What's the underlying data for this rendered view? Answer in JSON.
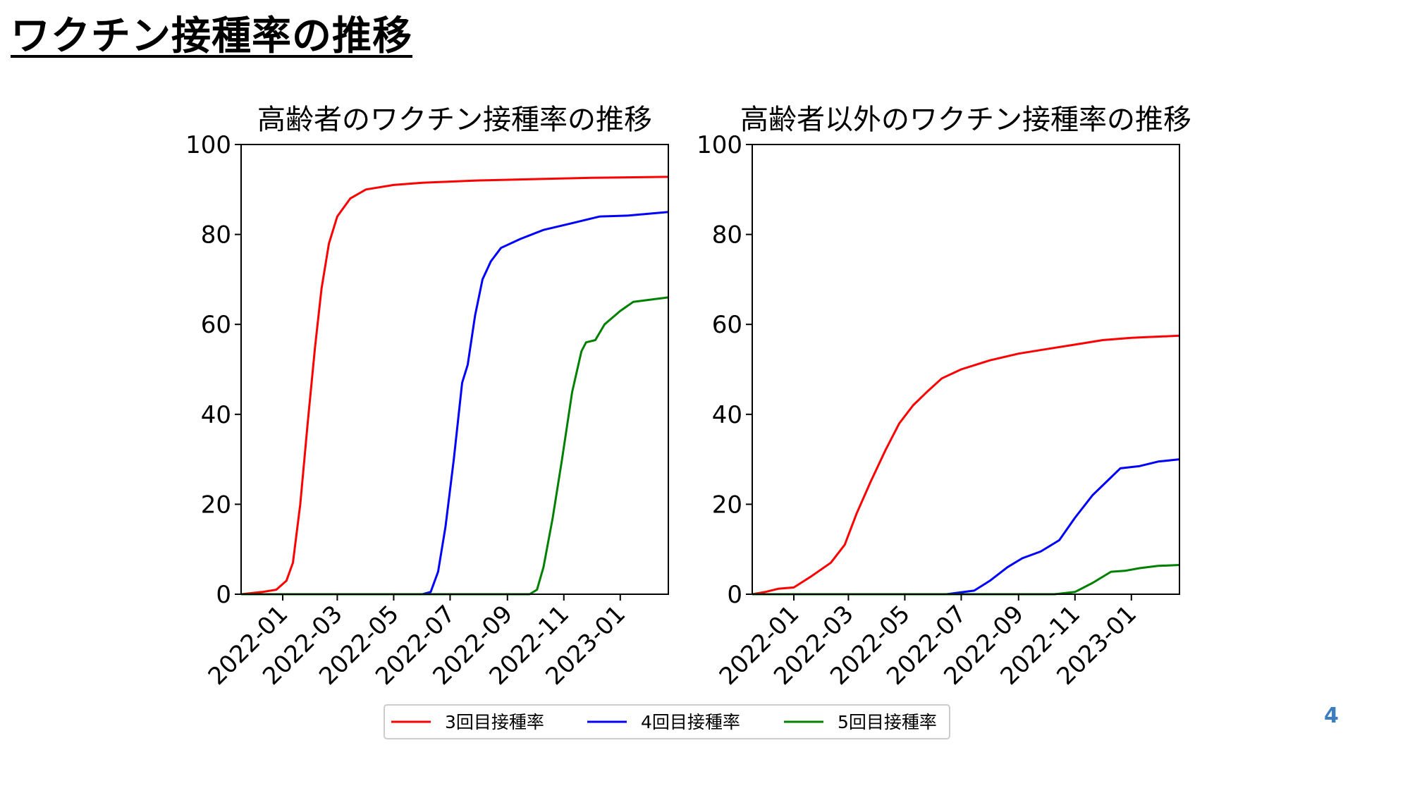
{
  "slide": {
    "title": "ワクチン接種率の推移",
    "page_number": "4"
  },
  "colors": {
    "dose3": "#ff0000",
    "dose4": "#0000ff",
    "dose5": "#008000",
    "page_number": "#3a7ec0"
  },
  "legend": {
    "placement": "bottom-center",
    "entries": [
      {
        "label": "3回目接種率",
        "color": "#ff0000"
      },
      {
        "label": "4回目接種率",
        "color": "#0000ff"
      },
      {
        "label": "5回目接種率",
        "color": "#008000"
      }
    ]
  },
  "chart_data": [
    {
      "type": "line",
      "title": "高齢者のワクチン接種率の推移",
      "xlabel": "",
      "ylabel": "",
      "xlim": [
        "2021-11-17",
        "2023-02-22"
      ],
      "ylim": [
        0,
        100
      ],
      "xticks": [
        "2022-01",
        "2022-03",
        "2022-05",
        "2022-07",
        "2022-09",
        "2022-11",
        "2023-01"
      ],
      "yticks": [
        0,
        20,
        40,
        60,
        80,
        100
      ],
      "grid": false,
      "series": [
        {
          "name": "3回目接種率",
          "color": "#ff0000",
          "points": [
            [
              "2021-11-17",
              0
            ],
            [
              "2021-12-10",
              0.5
            ],
            [
              "2021-12-25",
              1
            ],
            [
              "2022-01-05",
              3
            ],
            [
              "2022-01-12",
              7
            ],
            [
              "2022-01-20",
              20
            ],
            [
              "2022-01-28",
              38
            ],
            [
              "2022-02-05",
              55
            ],
            [
              "2022-02-12",
              68
            ],
            [
              "2022-02-20",
              78
            ],
            [
              "2022-03-01",
              84
            ],
            [
              "2022-03-15",
              88
            ],
            [
              "2022-04-01",
              90
            ],
            [
              "2022-05-01",
              91
            ],
            [
              "2022-06-01",
              91.5
            ],
            [
              "2022-08-01",
              92
            ],
            [
              "2022-10-01",
              92.3
            ],
            [
              "2022-12-01",
              92.6
            ],
            [
              "2023-02-22",
              92.8
            ]
          ]
        },
        {
          "name": "4回目接種率",
          "color": "#0000ff",
          "points": [
            [
              "2021-11-17",
              0
            ],
            [
              "2022-06-01",
              0
            ],
            [
              "2022-06-10",
              0.5
            ],
            [
              "2022-06-18",
              5
            ],
            [
              "2022-06-26",
              15
            ],
            [
              "2022-07-05",
              30
            ],
            [
              "2022-07-14",
              47
            ],
            [
              "2022-07-20",
              51
            ],
            [
              "2022-07-28",
              62
            ],
            [
              "2022-08-05",
              70
            ],
            [
              "2022-08-14",
              74
            ],
            [
              "2022-08-25",
              77
            ],
            [
              "2022-09-15",
              79
            ],
            [
              "2022-10-10",
              81
            ],
            [
              "2022-11-10",
              82.5
            ],
            [
              "2022-12-10",
              84
            ],
            [
              "2023-01-10",
              84.2
            ],
            [
              "2023-02-22",
              85
            ]
          ]
        },
        {
          "name": "5回目接種率",
          "color": "#008000",
          "points": [
            [
              "2021-11-17",
              0
            ],
            [
              "2022-09-25",
              0
            ],
            [
              "2022-10-03",
              1
            ],
            [
              "2022-10-10",
              6
            ],
            [
              "2022-10-20",
              17
            ],
            [
              "2022-10-30",
              30
            ],
            [
              "2022-11-10",
              45
            ],
            [
              "2022-11-20",
              54
            ],
            [
              "2022-11-25",
              56
            ],
            [
              "2022-12-05",
              56.5
            ],
            [
              "2022-12-15",
              60
            ],
            [
              "2023-01-01",
              63
            ],
            [
              "2023-01-15",
              65
            ],
            [
              "2023-02-22",
              66
            ]
          ]
        }
      ]
    },
    {
      "type": "line",
      "title": "高齢者以外のワクチン接種率の推移",
      "xlabel": "",
      "ylabel": "",
      "xlim": [
        "2021-11-17",
        "2023-02-22"
      ],
      "ylim": [
        0,
        100
      ],
      "xticks": [
        "2022-01",
        "2022-03",
        "2022-05",
        "2022-07",
        "2022-09",
        "2022-11",
        "2023-01"
      ],
      "yticks": [
        0,
        20,
        40,
        60,
        80,
        100
      ],
      "grid": false,
      "series": [
        {
          "name": "3回目接種率",
          "color": "#ff0000",
          "points": [
            [
              "2021-11-17",
              0
            ],
            [
              "2021-12-01",
              0.5
            ],
            [
              "2021-12-15",
              1.2
            ],
            [
              "2022-01-01",
              1.5
            ],
            [
              "2022-01-20",
              4
            ],
            [
              "2022-02-10",
              7
            ],
            [
              "2022-02-25",
              11
            ],
            [
              "2022-03-10",
              18
            ],
            [
              "2022-03-25",
              25
            ],
            [
              "2022-04-10",
              32
            ],
            [
              "2022-04-25",
              38
            ],
            [
              "2022-05-10",
              42
            ],
            [
              "2022-05-25",
              45
            ],
            [
              "2022-06-10",
              48
            ],
            [
              "2022-07-01",
              50
            ],
            [
              "2022-08-01",
              52
            ],
            [
              "2022-09-01",
              53.5
            ],
            [
              "2022-10-01",
              54.5
            ],
            [
              "2022-11-01",
              55.5
            ],
            [
              "2022-12-01",
              56.5
            ],
            [
              "2023-01-01",
              57
            ],
            [
              "2023-02-22",
              57.5
            ]
          ]
        },
        {
          "name": "4回目接種率",
          "color": "#0000ff",
          "points": [
            [
              "2021-11-17",
              0
            ],
            [
              "2022-06-15",
              0
            ],
            [
              "2022-07-15",
              0.8
            ],
            [
              "2022-08-01",
              3
            ],
            [
              "2022-08-20",
              6
            ],
            [
              "2022-09-05",
              8
            ],
            [
              "2022-09-25",
              9.5
            ],
            [
              "2022-10-15",
              12
            ],
            [
              "2022-11-01",
              17
            ],
            [
              "2022-11-20",
              22
            ],
            [
              "2022-12-05",
              25
            ],
            [
              "2022-12-20",
              28
            ],
            [
              "2023-01-10",
              28.5
            ],
            [
              "2023-01-30",
              29.5
            ],
            [
              "2023-02-22",
              30
            ]
          ]
        },
        {
          "name": "5回目接種率",
          "color": "#008000",
          "points": [
            [
              "2021-11-17",
              0
            ],
            [
              "2022-10-10",
              0
            ],
            [
              "2022-11-01",
              0.5
            ],
            [
              "2022-11-20",
              2.5
            ],
            [
              "2022-12-10",
              5
            ],
            [
              "2022-12-25",
              5.2
            ],
            [
              "2023-01-10",
              5.8
            ],
            [
              "2023-01-30",
              6.3
            ],
            [
              "2023-02-22",
              6.5
            ]
          ]
        }
      ]
    }
  ]
}
